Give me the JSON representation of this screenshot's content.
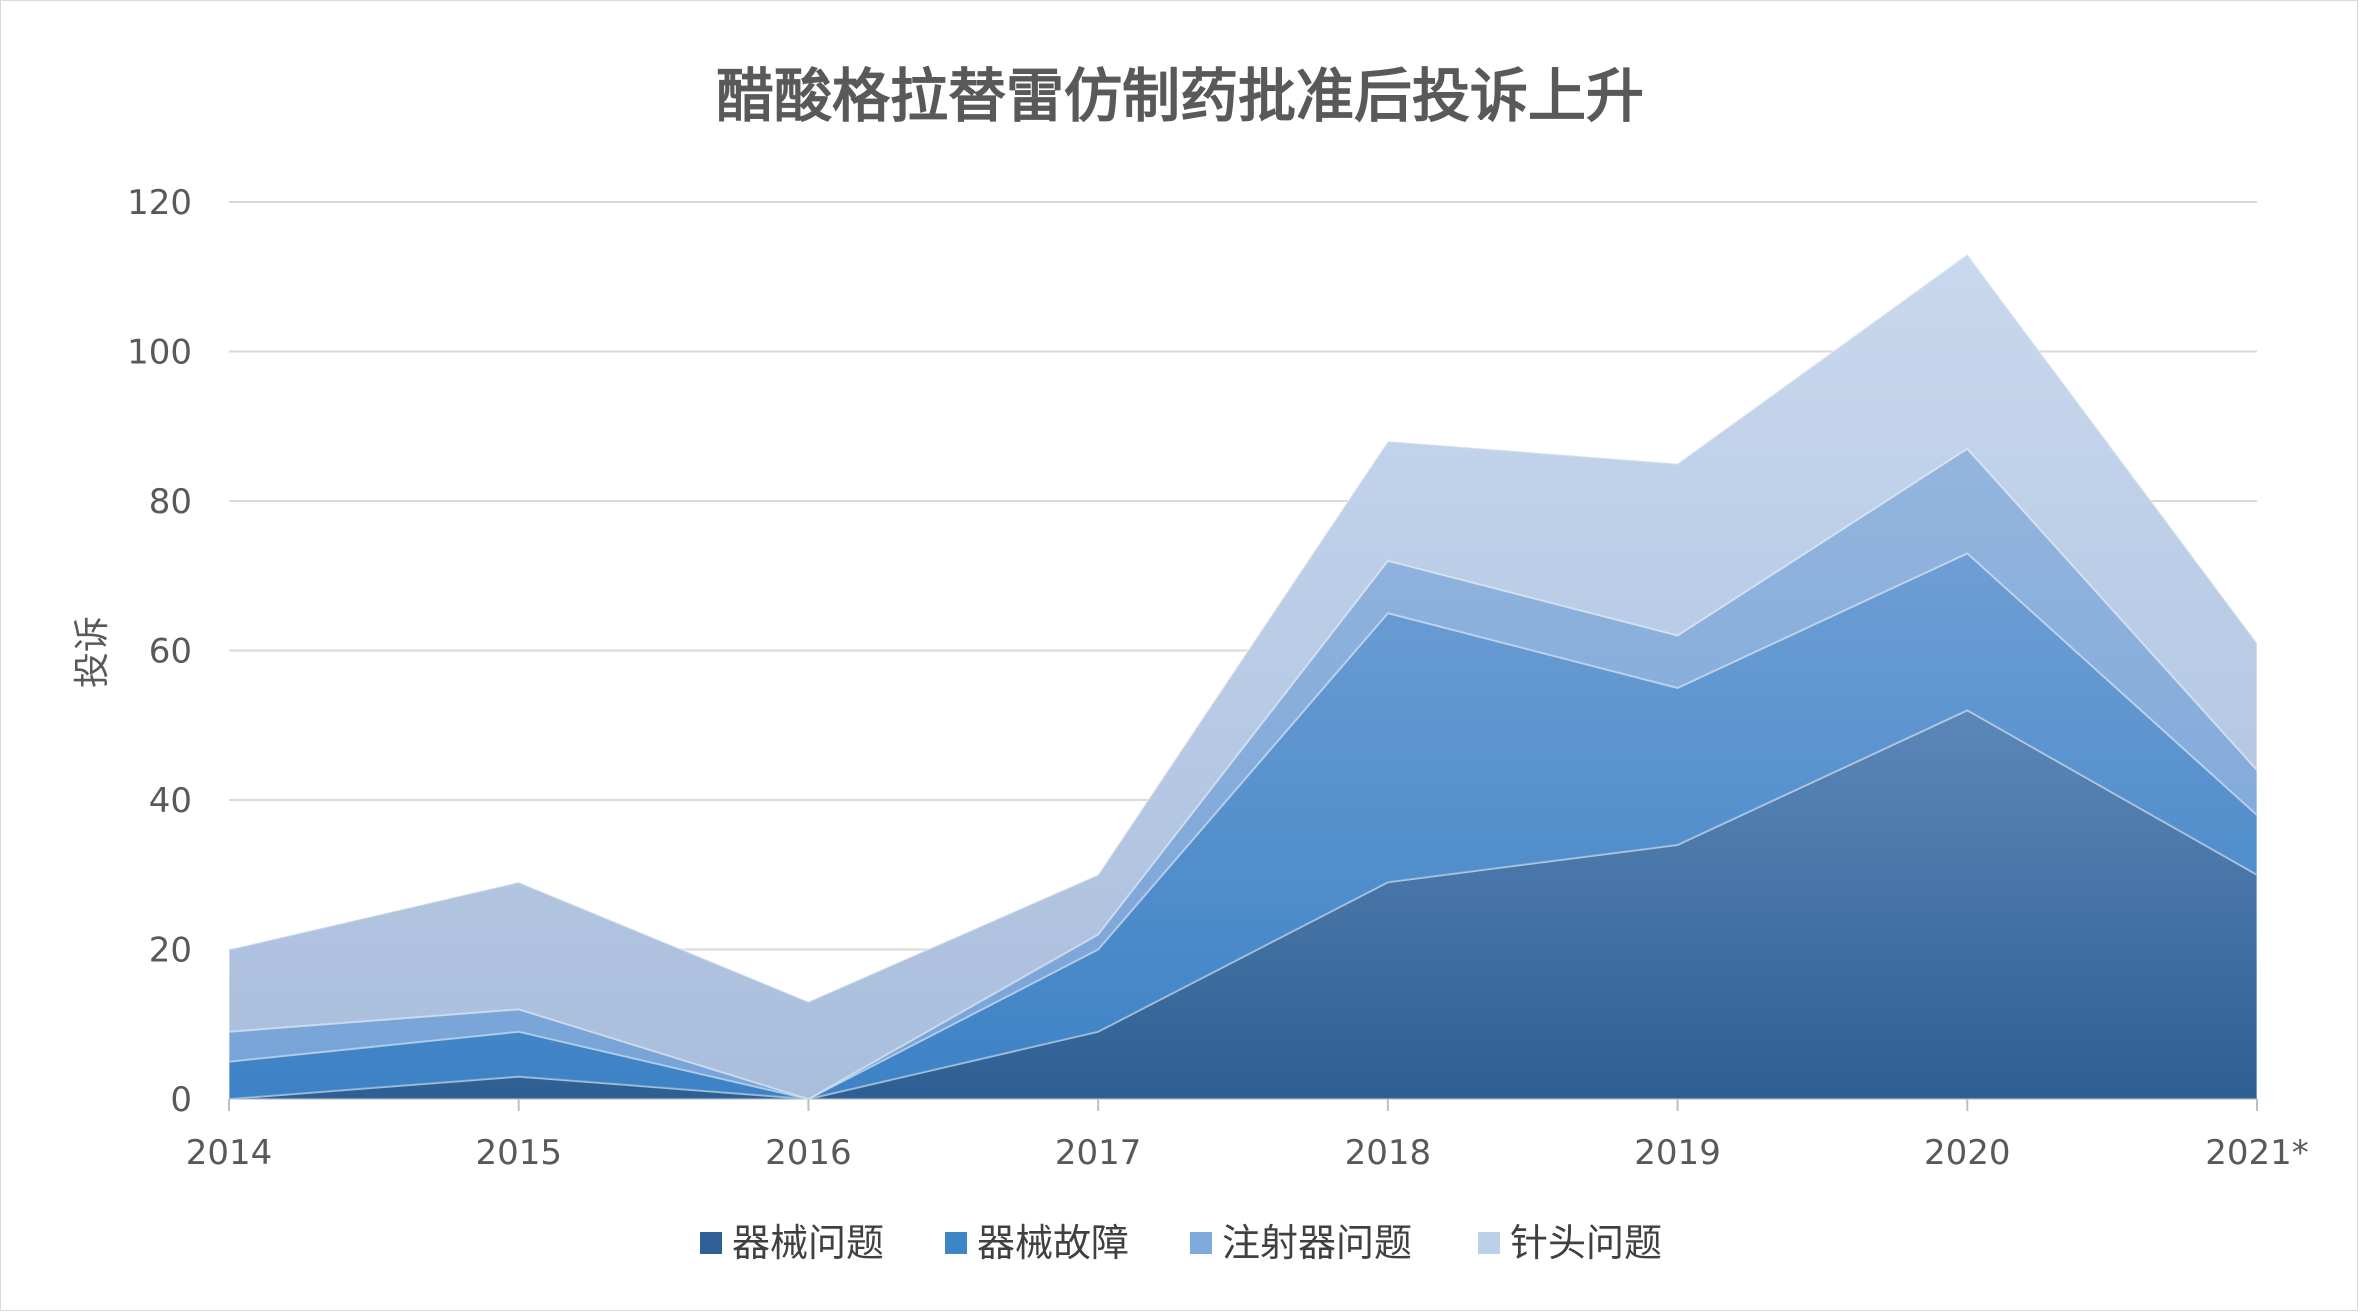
{
  "chart_data": {
    "type": "area",
    "stacked": true,
    "title": "醋酸格拉替雷仿制药批准后投诉上升",
    "xlabel": "",
    "ylabel": "投诉",
    "categories": [
      "2014",
      "2015",
      "2016",
      "2017",
      "2018",
      "2019",
      "2020",
      "2021*"
    ],
    "ylim": [
      0,
      120
    ],
    "yticks": [
      0,
      20,
      40,
      60,
      80,
      100,
      120
    ],
    "grid": true,
    "legend_position": "bottom",
    "series": [
      {
        "name": "器械问题",
        "values": [
          0,
          3,
          0,
          9,
          29,
          34,
          52,
          30
        ],
        "color": "#2E6096"
      },
      {
        "name": "器械故障",
        "values": [
          5,
          6,
          0,
          11,
          36,
          21,
          21,
          8
        ],
        "color": "#3C86C8"
      },
      {
        "name": "注射器问题",
        "values": [
          4,
          3,
          0,
          2,
          7,
          7,
          14,
          6
        ],
        "color": "#7FAADC"
      },
      {
        "name": "针头问题",
        "values": [
          11,
          17,
          13,
          8,
          16,
          23,
          26,
          17
        ],
        "color": "#BDD0EA"
      }
    ]
  }
}
